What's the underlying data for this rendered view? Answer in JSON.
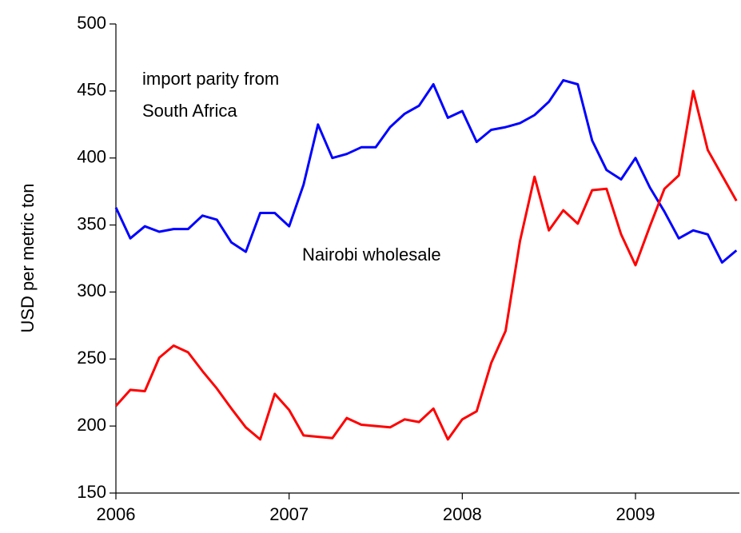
{
  "chart_data": {
    "type": "line",
    "y_label": "USD per metric ton",
    "x": [
      2006,
      2006.083,
      2006.167,
      2006.25,
      2006.333,
      2006.417,
      2006.5,
      2006.583,
      2006.667,
      2006.75,
      2006.833,
      2006.917,
      2007,
      2007.083,
      2007.167,
      2007.25,
      2007.333,
      2007.417,
      2007.5,
      2007.583,
      2007.667,
      2007.75,
      2007.833,
      2007.917,
      2008,
      2008.083,
      2008.167,
      2008.25,
      2008.333,
      2008.417,
      2008.5,
      2008.583,
      2008.667,
      2008.75,
      2008.833,
      2008.917,
      2009,
      2009.083,
      2009.167,
      2009.25,
      2009.333,
      2009.417,
      2009.5,
      2009.583
    ],
    "series": [
      {
        "color": "#0000ff",
        "values": [
          363,
          340,
          349,
          345,
          347,
          347,
          357,
          354,
          337,
          330,
          359,
          359,
          349,
          380,
          425,
          400,
          403,
          408,
          408,
          423,
          433,
          439,
          455,
          430,
          435,
          412,
          421,
          423,
          426,
          432,
          442,
          458,
          455,
          413,
          391,
          384,
          400,
          378,
          360,
          340,
          346,
          343,
          322,
          331
        ]
      },
      {
        "color": "#ff0000",
        "values": [
          215,
          227,
          226,
          251,
          260,
          255,
          241,
          228,
          213,
          199,
          190,
          224,
          212,
          193,
          192,
          191,
          206,
          201,
          200,
          199,
          205,
          203,
          213,
          190,
          205,
          211,
          247,
          271,
          338,
          386,
          346,
          361,
          351,
          376,
          377,
          343,
          320,
          349,
          377,
          387,
          450,
          406,
          387,
          368
        ]
      }
    ],
    "annotations": [
      {
        "lines": [
          "import parity from",
          "South Africa"
        ]
      },
      {
        "lines": [
          "Nairobi wholesale"
        ]
      }
    ],
    "xlim": [
      2006,
      2009.6
    ],
    "xticks": [
      2006,
      2007,
      2008,
      2009
    ],
    "ylim": [
      150,
      500
    ],
    "yticks": [
      150,
      200,
      250,
      300,
      350,
      400,
      450,
      500
    ]
  }
}
